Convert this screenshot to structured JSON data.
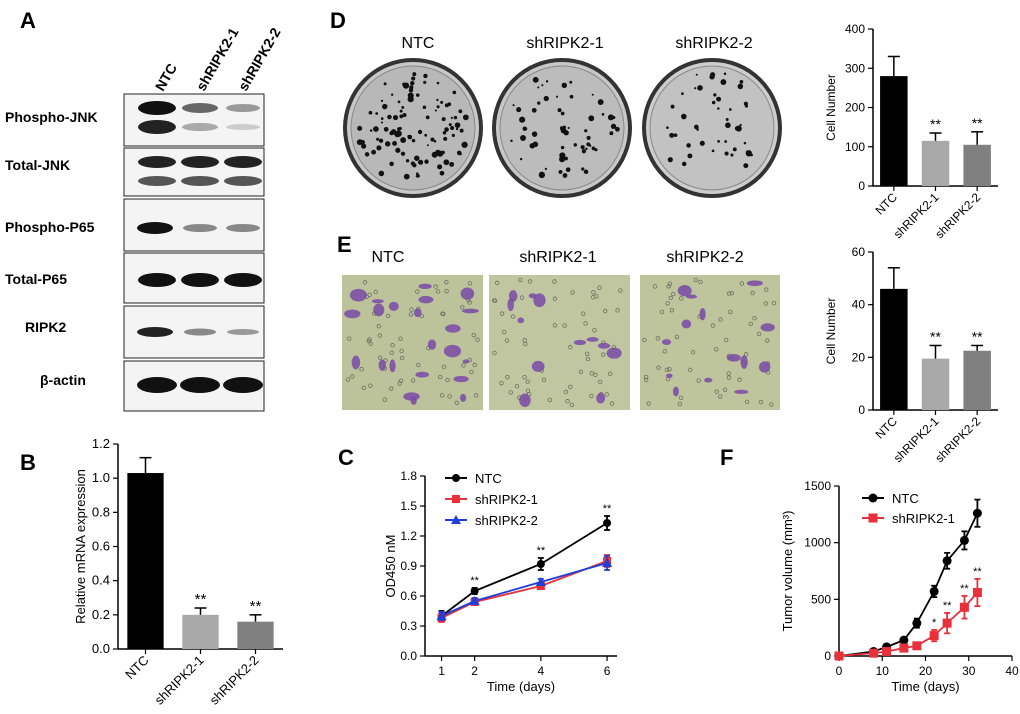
{
  "panel_letters": {
    "A": "A",
    "B": "B",
    "C": "C",
    "D": "D",
    "E": "E",
    "F": "F"
  },
  "blot": {
    "lanes": [
      "NTC",
      "shRIPK2-1",
      "shRIPK2-2"
    ],
    "rows": [
      "Phospho-JNK",
      "Total-JNK",
      "Phospho-P65",
      "Total-P65",
      "RIPK2",
      "β-actin"
    ]
  },
  "colony": {
    "labels": [
      "NTC",
      "shRIPK2-1",
      "shRIPK2-2"
    ]
  },
  "invasion": {
    "labels": [
      "NTC",
      "shRIPK2-1",
      "shRIPK2-2"
    ]
  },
  "chart_data": [
    {
      "id": "B",
      "type": "bar",
      "categories": [
        "NTC",
        "shRIPK2-1",
        "shRIPK2-2"
      ],
      "values": [
        1.03,
        0.2,
        0.16
      ],
      "errors": [
        0.09,
        0.04,
        0.04
      ],
      "significance": [
        "",
        "**",
        "**"
      ],
      "ylabel": "Relative mRNA expression",
      "ylim": [
        0,
        1.2
      ],
      "yticks": [
        "0.0",
        "0.2",
        "0.4",
        "0.6",
        "0.8",
        "1.0",
        "1.2"
      ],
      "colors": [
        "#000000",
        "#a8a8a8",
        "#808080"
      ]
    },
    {
      "id": "D",
      "type": "bar",
      "categories": [
        "NTC",
        "shRIPK2-1",
        "shRIPK2-2"
      ],
      "values": [
        280,
        115,
        105
      ],
      "errors": [
        50,
        20,
        33
      ],
      "significance": [
        "",
        "**",
        "**"
      ],
      "ylabel": "Cell Number",
      "ylim": [
        0,
        400
      ],
      "yticks": [
        "0",
        "100",
        "200",
        "300",
        "400"
      ],
      "colors": [
        "#000000",
        "#a8a8a8",
        "#808080"
      ]
    },
    {
      "id": "E",
      "type": "bar",
      "categories": [
        "NTC",
        "shRIPK2-1",
        "shRIPK2-2"
      ],
      "values": [
        46,
        19.5,
        22.5
      ],
      "errors": [
        8,
        5,
        2
      ],
      "significance": [
        "",
        "**",
        "**"
      ],
      "ylabel": "Cell Number",
      "ylim": [
        0,
        60
      ],
      "yticks": [
        "0",
        "20",
        "40",
        "60"
      ],
      "colors": [
        "#000000",
        "#a8a8a8",
        "#808080"
      ]
    },
    {
      "id": "C",
      "type": "line",
      "x": [
        1,
        2,
        4,
        6
      ],
      "xlabel": "Time (days)",
      "ylabel": "OD450 nM",
      "xlim": [
        0.5,
        6.3
      ],
      "ylim": [
        0,
        1.8
      ],
      "xticks": [
        "1",
        "2",
        "4",
        "6"
      ],
      "yticks": [
        "0.0",
        "0.3",
        "0.6",
        "0.9",
        "1.2",
        "1.5",
        "1.8"
      ],
      "series": [
        {
          "name": "NTC",
          "values": [
            0.4,
            0.65,
            0.92,
            1.33
          ],
          "errors": [
            0.05,
            0.03,
            0.06,
            0.07
          ],
          "color": "#000000",
          "marker": "circle"
        },
        {
          "name": "shRIPK2-1",
          "values": [
            0.38,
            0.54,
            0.7,
            0.95
          ],
          "errors": [
            0.04,
            0.03,
            0.03,
            0.06
          ],
          "color": "#e8303a",
          "marker": "square"
        },
        {
          "name": "shRIPK2-2",
          "values": [
            0.4,
            0.55,
            0.74,
            0.93
          ],
          "errors": [
            0.04,
            0.03,
            0.03,
            0.07
          ],
          "color": "#1f3fd8",
          "marker": "triangle"
        }
      ],
      "significance": [
        "",
        "**",
        "**",
        "**"
      ]
    },
    {
      "id": "F",
      "type": "line",
      "x": [
        0,
        8,
        11,
        15,
        18,
        22,
        25,
        29,
        32
      ],
      "xlabel": "Time (days)",
      "ylabel": "Tumor volume (mm³)",
      "xlim": [
        0,
        40
      ],
      "ylim": [
        0,
        1500
      ],
      "xticks": [
        "0",
        "10",
        "20",
        "30",
        "40"
      ],
      "yticks": [
        "0",
        "500",
        "1000",
        "1500"
      ],
      "series": [
        {
          "name": "NTC",
          "values": [
            0,
            40,
            80,
            140,
            290,
            570,
            840,
            1020,
            1260
          ],
          "errors": [
            5,
            10,
            15,
            20,
            40,
            50,
            70,
            80,
            120
          ],
          "color": "#000000",
          "marker": "circle"
        },
        {
          "name": "shRIPK2-1",
          "values": [
            0,
            25,
            40,
            70,
            90,
            180,
            290,
            430,
            560
          ],
          "errors": [
            5,
            8,
            10,
            15,
            30,
            50,
            90,
            100,
            120
          ],
          "color": "#e8303a",
          "marker": "square"
        }
      ],
      "significance": [
        "",
        "",
        "",
        "",
        "",
        "*",
        "**",
        "**",
        "**"
      ]
    }
  ]
}
